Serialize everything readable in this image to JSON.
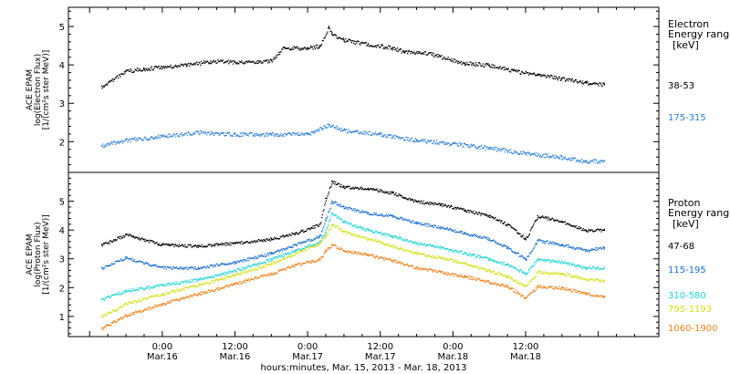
{
  "chart_data": [
    {
      "type": "scatter",
      "title": "",
      "ylabel_lines": [
        "ACE EPAM",
        "log(Electron Flux)",
        "[1/(cm²s ster MeV)]"
      ],
      "ylim": [
        1.2,
        5.5
      ],
      "yticks": [
        2,
        3,
        4,
        5
      ],
      "legend_title_lines": [
        "Electron",
        "Energy ranges"
      ],
      "legend_unit": "[keV]",
      "series": [
        {
          "name": "38-53",
          "color": "#000000",
          "x": [
            -10,
            -6,
            -3,
            0,
            4,
            8,
            12,
            16,
            18,
            20,
            24,
            26,
            27.5,
            28,
            30,
            34,
            38,
            40,
            44,
            50,
            54,
            58,
            62,
            66,
            70,
            73
          ],
          "y": [
            3.45,
            3.85,
            3.9,
            3.95,
            4.0,
            4.1,
            4.08,
            4.1,
            4.12,
            4.45,
            4.45,
            4.5,
            5.0,
            4.8,
            4.65,
            4.55,
            4.45,
            4.35,
            4.3,
            4.05,
            4.0,
            3.85,
            3.75,
            3.65,
            3.55,
            3.5
          ]
        },
        {
          "name": "175-315",
          "color": "#2a7fd4",
          "x": [
            -10,
            -6,
            0,
            6,
            12,
            18,
            24,
            27.5,
            30,
            36,
            42,
            48,
            54,
            60,
            66,
            70,
            73
          ],
          "y": [
            1.9,
            2.05,
            2.15,
            2.25,
            2.2,
            2.2,
            2.2,
            2.45,
            2.3,
            2.2,
            2.05,
            1.95,
            1.85,
            1.7,
            1.6,
            1.5,
            1.5
          ]
        }
      ]
    },
    {
      "type": "scatter",
      "title": "",
      "ylabel_lines": [
        "ACE EPAM",
        "log(Proton Flux)",
        "[1/(cm²s ster MeV)]"
      ],
      "ylim": [
        0.3,
        6.0
      ],
      "yticks": [
        1,
        2,
        3,
        4,
        5
      ],
      "legend_title_lines": [
        "Proton",
        "Energy ranges"
      ],
      "legend_unit": "[keV]",
      "xlabel": "hours:minutes, Mar. 15, 2013 - Mar. 18, 2013",
      "xtick_times": [
        "0:00",
        "12:00",
        "0:00",
        "12:00",
        "0:00",
        "12:00"
      ],
      "xtick_dates": [
        "Mar.16",
        "Mar.16",
        "Mar.17",
        "Mar.17",
        "Mar.18",
        "Mar.18"
      ],
      "series": [
        {
          "name": "47-68",
          "color": "#000000",
          "x": [
            -10,
            -6,
            0,
            6,
            12,
            18,
            22,
            26,
            27,
            28,
            30,
            34,
            38,
            42,
            46,
            50,
            54,
            57,
            60,
            62,
            66,
            70,
            73
          ],
          "y": [
            3.5,
            3.85,
            3.5,
            3.45,
            3.55,
            3.7,
            3.9,
            4.2,
            5.1,
            5.7,
            5.5,
            5.45,
            5.3,
            5.0,
            4.9,
            4.7,
            4.5,
            4.2,
            3.7,
            4.5,
            4.3,
            4.0,
            4.0
          ]
        },
        {
          "name": "115-195",
          "color": "#1a6fd0",
          "x": [
            -10,
            -6,
            0,
            6,
            12,
            18,
            22,
            26,
            27,
            28,
            30,
            34,
            38,
            42,
            46,
            50,
            54,
            57,
            60,
            62,
            66,
            70,
            73
          ],
          "y": [
            2.7,
            3.05,
            2.7,
            2.7,
            2.9,
            3.2,
            3.5,
            3.8,
            4.4,
            5.0,
            4.8,
            4.6,
            4.5,
            4.25,
            4.1,
            3.9,
            3.7,
            3.4,
            3.0,
            3.65,
            3.5,
            3.3,
            3.4
          ]
        },
        {
          "name": "310-580",
          "color": "#1ed4d4",
          "x": [
            -10,
            -6,
            0,
            6,
            12,
            18,
            22,
            26,
            27,
            28,
            30,
            34,
            38,
            42,
            46,
            50,
            54,
            57,
            60,
            62,
            66,
            70,
            73
          ],
          "y": [
            1.6,
            1.9,
            2.1,
            2.3,
            2.6,
            3.0,
            3.3,
            3.6,
            4.0,
            4.6,
            4.3,
            4.0,
            3.8,
            3.55,
            3.4,
            3.2,
            3.0,
            2.8,
            2.5,
            3.0,
            2.9,
            2.7,
            2.7
          ]
        },
        {
          "name": "795-1193",
          "color": "#d4e01a",
          "x": [
            -10,
            -6,
            0,
            6,
            12,
            18,
            22,
            26,
            27,
            28,
            30,
            34,
            38,
            42,
            46,
            50,
            54,
            57,
            60,
            62,
            66,
            70,
            73
          ],
          "y": [
            1.0,
            1.45,
            1.8,
            2.1,
            2.45,
            2.85,
            3.2,
            3.55,
            3.8,
            4.2,
            3.95,
            3.7,
            3.45,
            3.2,
            3.05,
            2.85,
            2.6,
            2.4,
            2.05,
            2.55,
            2.5,
            2.3,
            2.25
          ]
        },
        {
          "name": "1060-1900",
          "color": "#f0801a",
          "x": [
            -10,
            -6,
            0,
            6,
            12,
            18,
            22,
            26,
            27,
            28,
            30,
            34,
            38,
            42,
            46,
            50,
            54,
            57,
            60,
            62,
            66,
            70,
            73
          ],
          "y": [
            0.6,
            1.05,
            1.45,
            1.8,
            2.15,
            2.5,
            2.8,
            3.0,
            3.3,
            3.5,
            3.3,
            3.15,
            2.95,
            2.7,
            2.55,
            2.4,
            2.2,
            2.05,
            1.65,
            2.05,
            2.0,
            1.8,
            1.7
          ]
        }
      ]
    }
  ]
}
